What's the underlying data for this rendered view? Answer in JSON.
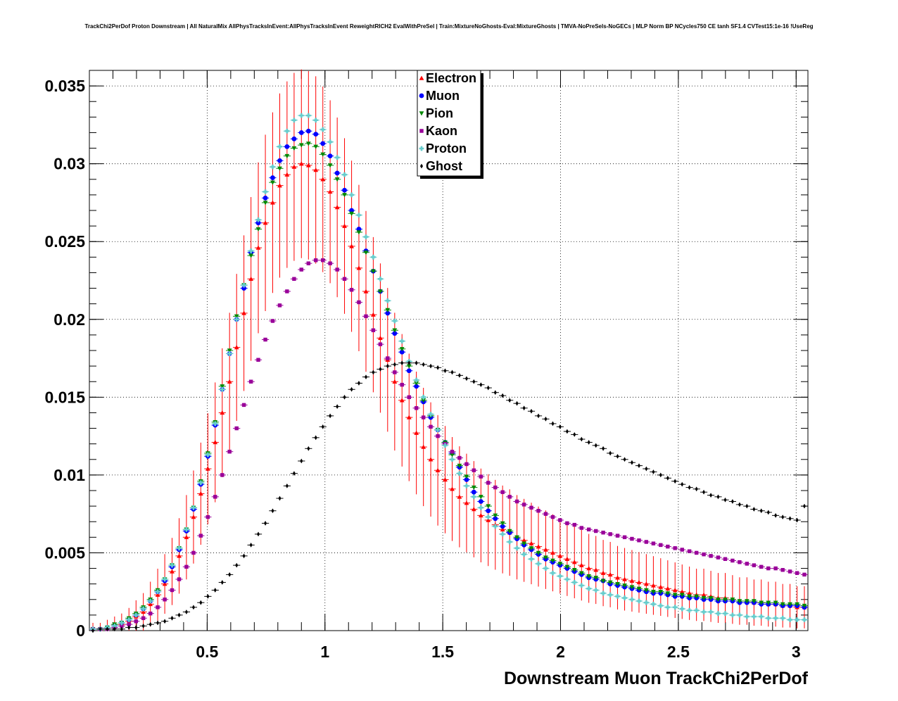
{
  "chart_data": {
    "type": "scatter",
    "title": "TrackChi2PerDof Proton Downstream | All NaturalMix AllPhysTracksInEvent:AllPhysTracksInEvent ReweightRICH2 EvalWithPreSel | Train:MixtureNoGhosts-Eval:MixtureGhosts | TMVA-NoPreSels-NoGECs | MLP Norm BP NCycles750 CE tanh SF1.4 CVTest15:1e-16 !UseReg",
    "xlabel": "Downstream Muon TrackChi2PerDof",
    "ylabel": "",
    "xlim": [
      0,
      3.05
    ],
    "ylim": [
      0,
      0.036
    ],
    "x_ticks": [
      "0.5",
      "1",
      "1.5",
      "2",
      "2.5",
      "3"
    ],
    "x_tick_values": [
      0.5,
      1,
      1.5,
      2,
      2.5,
      3
    ],
    "y_ticks": [
      "0",
      "0.005",
      "0.01",
      "0.015",
      "0.02",
      "0.025",
      "0.03",
      "0.035"
    ],
    "y_tick_values": [
      0,
      0.005,
      0.01,
      0.015,
      0.02,
      0.025,
      0.03,
      0.035
    ],
    "grid": true,
    "legend_position": "top-center",
    "bin_width": 0.0305,
    "x": [
      0.015,
      0.046,
      0.076,
      0.107,
      0.137,
      0.168,
      0.198,
      0.229,
      0.259,
      0.29,
      0.32,
      0.351,
      0.381,
      0.412,
      0.442,
      0.473,
      0.503,
      0.534,
      0.564,
      0.595,
      0.625,
      0.656,
      0.686,
      0.717,
      0.747,
      0.778,
      0.808,
      0.839,
      0.869,
      0.9,
      0.93,
      0.961,
      0.991,
      1.022,
      1.052,
      1.083,
      1.113,
      1.144,
      1.174,
      1.205,
      1.235,
      1.266,
      1.296,
      1.327,
      1.357,
      1.388,
      1.418,
      1.449,
      1.479,
      1.51,
      1.54,
      1.571,
      1.601,
      1.632,
      1.662,
      1.693,
      1.723,
      1.754,
      1.784,
      1.815,
      1.845,
      1.876,
      1.906,
      1.937,
      1.967,
      1.998,
      2.028,
      2.059,
      2.089,
      2.12,
      2.15,
      2.181,
      2.211,
      2.242,
      2.272,
      2.303,
      2.333,
      2.364,
      2.394,
      2.425,
      2.455,
      2.486,
      2.516,
      2.547,
      2.577,
      2.608,
      2.638,
      2.669,
      2.699,
      2.73,
      2.76,
      2.791,
      2.821,
      2.852,
      2.882,
      2.913,
      2.943,
      2.974,
      3.004,
      3.035
    ],
    "series": [
      {
        "name": "Electron",
        "color": "#ff0000",
        "marker": "triangle-up",
        "values": [
          0.0001,
          0.0001,
          0.0002,
          0.0003,
          0.0004,
          0.0006,
          0.0009,
          0.0012,
          0.0017,
          0.0023,
          0.003,
          0.0038,
          0.0048,
          0.006,
          0.0073,
          0.0088,
          0.0104,
          0.0121,
          0.014,
          0.016,
          0.0182,
          0.0204,
          0.0226,
          0.0246,
          0.0262,
          0.0275,
          0.0286,
          0.0293,
          0.0298,
          0.03,
          0.0299,
          0.0296,
          0.029,
          0.0282,
          0.0272,
          0.026,
          0.0247,
          0.0233,
          0.0218,
          0.0203,
          0.0188,
          0.0174,
          0.016,
          0.0148,
          0.0137,
          0.0127,
          0.0118,
          0.011,
          0.0103,
          0.0097,
          0.0091,
          0.0086,
          0.0082,
          0.0078,
          0.0074,
          0.0071,
          0.0068,
          0.0065,
          0.0063,
          0.006,
          0.0058,
          0.0056,
          0.0054,
          0.0052,
          0.005,
          0.0048,
          0.0046,
          0.0044,
          0.0042,
          0.004,
          0.0039,
          0.0037,
          0.0036,
          0.0034,
          0.0033,
          0.0032,
          0.0031,
          0.003,
          0.0029,
          0.0028,
          0.0027,
          0.0026,
          0.0025,
          0.0024,
          0.0023,
          0.0023,
          0.0022,
          0.0021,
          0.0021,
          0.002,
          0.0019,
          0.0019,
          0.0018,
          0.0018,
          0.0017,
          0.0017,
          0.0016,
          0.0016,
          0.0015,
          0.0015
        ]
      },
      {
        "name": "Muon",
        "color": "#0000ff",
        "marker": "circle",
        "values": [
          0.0001,
          0.0001,
          0.0002,
          0.0003,
          0.0005,
          0.0007,
          0.001,
          0.0014,
          0.0019,
          0.0025,
          0.0032,
          0.0041,
          0.0052,
          0.0064,
          0.0078,
          0.0094,
          0.0112,
          0.0132,
          0.0155,
          0.0178,
          0.02,
          0.022,
          0.0243,
          0.0262,
          0.0278,
          0.0291,
          0.0302,
          0.0311,
          0.0316,
          0.032,
          0.0321,
          0.0319,
          0.0313,
          0.0305,
          0.0294,
          0.0283,
          0.027,
          0.0258,
          0.0244,
          0.0231,
          0.0218,
          0.0204,
          0.0191,
          0.0179,
          0.0167,
          0.0157,
          0.0147,
          0.0137,
          0.0129,
          0.0121,
          0.0114,
          0.0105,
          0.0097,
          0.0089,
          0.0083,
          0.0077,
          0.0072,
          0.0067,
          0.0063,
          0.0059,
          0.0055,
          0.0052,
          0.0049,
          0.0046,
          0.0044,
          0.0042,
          0.004,
          0.0038,
          0.0036,
          0.0034,
          0.0033,
          0.0032,
          0.003,
          0.0029,
          0.0028,
          0.0027,
          0.0026,
          0.0025,
          0.0024,
          0.0024,
          0.0023,
          0.0022,
          0.0022,
          0.0021,
          0.0021,
          0.002,
          0.002,
          0.0019,
          0.0019,
          0.0019,
          0.0018,
          0.0018,
          0.0018,
          0.0017,
          0.0017,
          0.0017,
          0.0016,
          0.0016,
          0.0016,
          0.0015
        ]
      },
      {
        "name": "Pion",
        "color": "#008800",
        "marker": "triangle-down",
        "values": [
          0.0001,
          0.0001,
          0.0002,
          0.0004,
          0.0005,
          0.0008,
          0.0011,
          0.0015,
          0.002,
          0.0026,
          0.0033,
          0.0042,
          0.0053,
          0.0065,
          0.0079,
          0.0096,
          0.0114,
          0.0134,
          0.0157,
          0.018,
          0.0202,
          0.0222,
          0.0241,
          0.0258,
          0.0275,
          0.0288,
          0.0297,
          0.0305,
          0.031,
          0.0312,
          0.0313,
          0.0311,
          0.0306,
          0.0299,
          0.029,
          0.028,
          0.0268,
          0.0256,
          0.0243,
          0.0231,
          0.0218,
          0.0206,
          0.0193,
          0.0181,
          0.017,
          0.0159,
          0.0148,
          0.0138,
          0.0129,
          0.0121,
          0.0113,
          0.0106,
          0.0099,
          0.0092,
          0.0086,
          0.008,
          0.0074,
          0.0069,
          0.0064,
          0.006,
          0.0056,
          0.0053,
          0.005,
          0.0047,
          0.0045,
          0.0043,
          0.0041,
          0.0039,
          0.0037,
          0.0035,
          0.0034,
          0.0032,
          0.0031,
          0.003,
          0.0029,
          0.0028,
          0.0027,
          0.0026,
          0.0025,
          0.0025,
          0.0024,
          0.0023,
          0.0023,
          0.0022,
          0.0022,
          0.0021,
          0.0021,
          0.002,
          0.002,
          0.002,
          0.0019,
          0.0019,
          0.0019,
          0.0018,
          0.0018,
          0.0018,
          0.0017,
          0.0017,
          0.0017,
          0.0016
        ]
      },
      {
        "name": "Kaon",
        "color": "#990099",
        "marker": "square",
        "values": [
          0.0001,
          0.0001,
          0.0001,
          0.0002,
          0.0003,
          0.0004,
          0.0006,
          0.0008,
          0.0011,
          0.0015,
          0.002,
          0.0026,
          0.0033,
          0.0041,
          0.005,
          0.0061,
          0.0073,
          0.0086,
          0.01,
          0.0115,
          0.013,
          0.0145,
          0.016,
          0.0174,
          0.0187,
          0.0199,
          0.0209,
          0.0218,
          0.0226,
          0.0232,
          0.0236,
          0.0238,
          0.0238,
          0.0236,
          0.0232,
          0.0226,
          0.0219,
          0.0211,
          0.0202,
          0.0193,
          0.0184,
          0.0175,
          0.0166,
          0.0158,
          0.015,
          0.0143,
          0.0137,
          0.0131,
          0.0125,
          0.012,
          0.0115,
          0.0111,
          0.0107,
          0.0103,
          0.0099,
          0.0095,
          0.0092,
          0.0089,
          0.0086,
          0.0083,
          0.0081,
          0.0079,
          0.0077,
          0.0075,
          0.0073,
          0.0071,
          0.0069,
          0.0068,
          0.0066,
          0.0065,
          0.0064,
          0.0063,
          0.0062,
          0.0061,
          0.006,
          0.0059,
          0.0058,
          0.0057,
          0.0056,
          0.0055,
          0.0054,
          0.0053,
          0.0052,
          0.0051,
          0.005,
          0.0049,
          0.0048,
          0.0047,
          0.0046,
          0.0045,
          0.0044,
          0.0043,
          0.0042,
          0.0041,
          0.004,
          0.004,
          0.0039,
          0.0038,
          0.0037,
          0.0036
        ]
      },
      {
        "name": "Proton",
        "color": "#66cccc",
        "marker": "cross",
        "values": [
          0.0001,
          0.0001,
          0.0002,
          0.0003,
          0.0005,
          0.0007,
          0.001,
          0.0014,
          0.0019,
          0.0025,
          0.0033,
          0.0042,
          0.0053,
          0.0065,
          0.0079,
          0.0095,
          0.0113,
          0.0133,
          0.0155,
          0.0178,
          0.02,
          0.0222,
          0.0244,
          0.0264,
          0.0282,
          0.0298,
          0.0311,
          0.0321,
          0.0328,
          0.0331,
          0.0331,
          0.0328,
          0.0322,
          0.0314,
          0.0304,
          0.0293,
          0.028,
          0.0267,
          0.0253,
          0.024,
          0.0226,
          0.0212,
          0.0199,
          0.0186,
          0.0173,
          0.0161,
          0.015,
          0.0139,
          0.0129,
          0.0119,
          0.011,
          0.0101,
          0.0093,
          0.0086,
          0.0079,
          0.0073,
          0.0067,
          0.0062,
          0.0057,
          0.0053,
          0.0049,
          0.0046,
          0.0043,
          0.004,
          0.0037,
          0.0035,
          0.0033,
          0.0031,
          0.0029,
          0.0027,
          0.0026,
          0.0024,
          0.0023,
          0.0022,
          0.0021,
          0.002,
          0.0019,
          0.0018,
          0.0017,
          0.0016,
          0.0015,
          0.0015,
          0.0014,
          0.0013,
          0.0013,
          0.0012,
          0.0012,
          0.0011,
          0.0011,
          0.001,
          0.001,
          0.0009,
          0.0009,
          0.0009,
          0.0008,
          0.0008,
          0.0008,
          0.0007,
          0.0007,
          0.0007
        ]
      },
      {
        "name": "Ghost",
        "color": "#000000",
        "marker": "diamond",
        "values": [
          0.0,
          0.0001,
          0.0001,
          0.0001,
          0.0001,
          0.0002,
          0.0002,
          0.0003,
          0.0004,
          0.0005,
          0.0006,
          0.0008,
          0.001,
          0.0012,
          0.0015,
          0.0018,
          0.0022,
          0.0026,
          0.0031,
          0.0036,
          0.0042,
          0.0048,
          0.0055,
          0.0062,
          0.0069,
          0.0077,
          0.0085,
          0.0093,
          0.0101,
          0.0109,
          0.0117,
          0.0124,
          0.0131,
          0.0138,
          0.0144,
          0.015,
          0.0155,
          0.0159,
          0.0163,
          0.0166,
          0.0168,
          0.017,
          0.0171,
          0.0172,
          0.0172,
          0.0172,
          0.0171,
          0.017,
          0.0169,
          0.0167,
          0.0166,
          0.0164,
          0.0162,
          0.016,
          0.0158,
          0.0156,
          0.0153,
          0.0151,
          0.0148,
          0.0146,
          0.0143,
          0.0141,
          0.0138,
          0.0136,
          0.0133,
          0.0131,
          0.0128,
          0.0126,
          0.0123,
          0.0121,
          0.0119,
          0.0117,
          0.0114,
          0.0112,
          0.011,
          0.0108,
          0.0106,
          0.0104,
          0.0102,
          0.01,
          0.0098,
          0.0096,
          0.0094,
          0.0092,
          0.0091,
          0.0089,
          0.0087,
          0.0086,
          0.0084,
          0.0083,
          0.0081,
          0.008,
          0.0078,
          0.0077,
          0.0076,
          0.0074,
          0.0073,
          0.0072,
          0.0071,
          0.008
        ]
      }
    ]
  }
}
